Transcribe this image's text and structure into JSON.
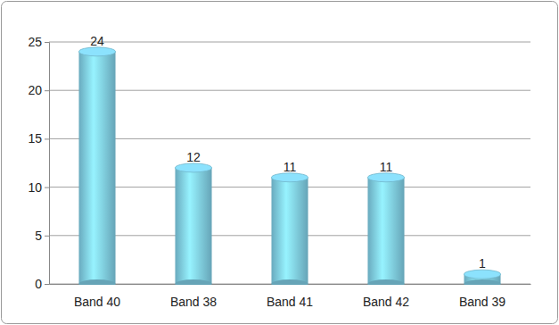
{
  "chart_data": {
    "type": "bar",
    "categories": [
      "Band 40",
      "Band 38",
      "Band 41",
      "Band 42",
      "Band 39"
    ],
    "values": [
      24,
      12,
      11,
      11,
      1
    ],
    "color": "#7ecbe3",
    "ylim": [
      0,
      25
    ],
    "yticks": [
      0,
      5,
      10,
      15,
      20,
      25
    ],
    "grid": true,
    "data_labels": true
  }
}
